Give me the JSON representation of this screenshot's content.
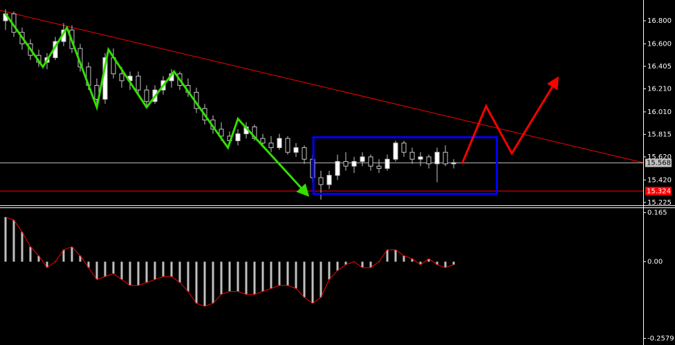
{
  "chart_data": [
    {
      "type": "candlestick",
      "xlim": [
        -0.667,
        76.833
      ],
      "ylim": [
        15.2,
        16.98
      ],
      "yticks": [
        {
          "value": 16.8,
          "label": "16.800"
        },
        {
          "value": 16.6,
          "label": "16.600"
        },
        16.405,
        {
          "value": 16.21,
          "label": "16.210"
        },
        {
          "value": 16.01,
          "label": "16.010"
        },
        15.815,
        {
          "value": 15.62,
          "label": "15.620"
        },
        {
          "value": 15.42,
          "label": "15.420"
        },
        15.225
      ],
      "up_color": "#ffffff",
      "down_color": "#000000",
      "outline_color": "#c8c8c8",
      "candles": [
        [
          16.8,
          16.9,
          16.72,
          16.86
        ],
        [
          16.86,
          16.88,
          16.66,
          16.7
        ],
        [
          16.7,
          16.74,
          16.55,
          16.6
        ],
        [
          16.6,
          16.64,
          16.46,
          16.5
        ],
        [
          16.5,
          16.55,
          16.4,
          16.44
        ],
        [
          16.44,
          16.52,
          16.38,
          16.48
        ],
        [
          16.48,
          16.66,
          16.46,
          16.62
        ],
        [
          16.62,
          16.78,
          16.58,
          16.72
        ],
        [
          16.72,
          16.76,
          16.52,
          16.56
        ],
        [
          16.56,
          16.6,
          16.36,
          16.4
        ],
        [
          16.4,
          16.44,
          16.2,
          16.24
        ],
        [
          16.24,
          16.3,
          16.06,
          16.12
        ],
        [
          16.12,
          16.52,
          16.08,
          16.48
        ],
        [
          16.48,
          16.56,
          16.3,
          16.34
        ],
        [
          16.34,
          16.4,
          16.22,
          16.28
        ],
        [
          16.28,
          16.36,
          16.2,
          16.32
        ],
        [
          16.32,
          16.36,
          16.16,
          16.2
        ],
        [
          16.2,
          16.24,
          16.06,
          16.1
        ],
        [
          16.1,
          16.24,
          16.08,
          16.2
        ],
        [
          16.2,
          16.32,
          16.16,
          16.28
        ],
        [
          16.28,
          16.38,
          16.22,
          16.34
        ],
        [
          16.34,
          16.36,
          16.2,
          16.24
        ],
        [
          16.24,
          16.3,
          16.14,
          16.18
        ],
        [
          16.18,
          16.22,
          16.0,
          16.04
        ],
        [
          16.04,
          16.08,
          15.9,
          15.94
        ],
        [
          15.94,
          15.98,
          15.82,
          15.86
        ],
        [
          15.86,
          15.92,
          15.76,
          15.8
        ],
        [
          15.8,
          15.84,
          15.72,
          15.76
        ],
        [
          15.76,
          15.86,
          15.72,
          15.82
        ],
        [
          15.82,
          15.92,
          15.78,
          15.88
        ],
        [
          15.88,
          15.9,
          15.76,
          15.78
        ],
        [
          15.78,
          15.82,
          15.7,
          15.74
        ],
        [
          15.74,
          15.8,
          15.66,
          15.7
        ],
        [
          15.7,
          15.82,
          15.68,
          15.78
        ],
        [
          15.78,
          15.8,
          15.64,
          15.66
        ],
        [
          15.66,
          15.74,
          15.62,
          15.7
        ],
        [
          15.7,
          15.72,
          15.56,
          15.6
        ],
        [
          15.6,
          15.64,
          15.4,
          15.44
        ],
        [
          15.44,
          15.5,
          15.25,
          15.38
        ],
        [
          15.38,
          15.5,
          15.34,
          15.46
        ],
        [
          15.46,
          15.64,
          15.42,
          15.58
        ],
        [
          15.58,
          15.66,
          15.5,
          15.54
        ],
        [
          15.54,
          15.62,
          15.48,
          15.58
        ],
        [
          15.58,
          15.66,
          15.54,
          15.62
        ],
        [
          15.62,
          15.64,
          15.5,
          15.54
        ],
        [
          15.54,
          15.6,
          15.48,
          15.52
        ],
        [
          15.52,
          15.64,
          15.5,
          15.6
        ],
        [
          15.6,
          15.76,
          15.58,
          15.74
        ],
        [
          15.74,
          15.76,
          15.62,
          15.66
        ],
        [
          15.66,
          15.7,
          15.56,
          15.6
        ],
        [
          15.6,
          15.66,
          15.54,
          15.62
        ],
        [
          15.62,
          15.64,
          15.52,
          15.56
        ],
        [
          15.56,
          15.7,
          15.4,
          15.66
        ],
        [
          15.66,
          15.72,
          15.54,
          15.56
        ],
        [
          15.56,
          15.6,
          15.52,
          15.57
        ]
      ],
      "trendline": {
        "color": "#ff0000",
        "x": [
          -0.667,
          76.833
        ],
        "y": [
          16.89,
          15.57
        ]
      },
      "hlines": [
        {
          "value": 15.568,
          "color": "#c0c0c0"
        },
        {
          "value": 15.324,
          "color": "#ff0000"
        }
      ],
      "zigzag": {
        "color": "#33dd00",
        "x": [
          0,
          4.5,
          7.4,
          11,
          12.4,
          17,
          20.3,
          26.8,
          28,
          36.4
        ],
        "y": [
          16.86,
          16.4,
          16.74,
          16.05,
          16.55,
          16.05,
          16.36,
          15.7,
          15.95,
          15.29
        ]
      },
      "forecast": {
        "color": "#ff0000",
        "x": [
          55,
          57.9,
          61,
          66.5
        ],
        "y": [
          15.56,
          16.06,
          15.65,
          16.3
        ]
      },
      "range_box": {
        "color": "#0000ff",
        "x": [
          37.1,
          59.2
        ],
        "y": [
          15.3,
          15.79
        ]
      }
    },
    {
      "type": "histogram",
      "xlim": [
        -0.667,
        76.833
      ],
      "ylim": [
        -0.28,
        0.18
      ],
      "yticks": [
        0.165,
        {
          "value": 0,
          "label": "0.00"
        },
        -0.2579
      ],
      "color": "#c0c0c0",
      "signal_color": "#ff0000",
      "values": [
        0.15,
        0.14,
        0.1,
        0.05,
        0.02,
        -0.02,
        0,
        0.04,
        0.05,
        0.02,
        -0.02,
        -0.06,
        -0.05,
        -0.04,
        -0.06,
        -0.08,
        -0.08,
        -0.07,
        -0.06,
        -0.05,
        -0.05,
        -0.07,
        -0.1,
        -0.14,
        -0.15,
        -0.14,
        -0.11,
        -0.1,
        -0.1,
        -0.11,
        -0.11,
        -0.1,
        -0.09,
        -0.08,
        -0.08,
        -0.09,
        -0.12,
        -0.14,
        -0.12,
        -0.06,
        -0.03,
        -0.01,
        0,
        -0.02,
        -0.02,
        0,
        0.04,
        0.04,
        0.02,
        0.01,
        -0.01,
        0.01,
        -0.01,
        -0.02,
        -0.01
      ]
    }
  ]
}
